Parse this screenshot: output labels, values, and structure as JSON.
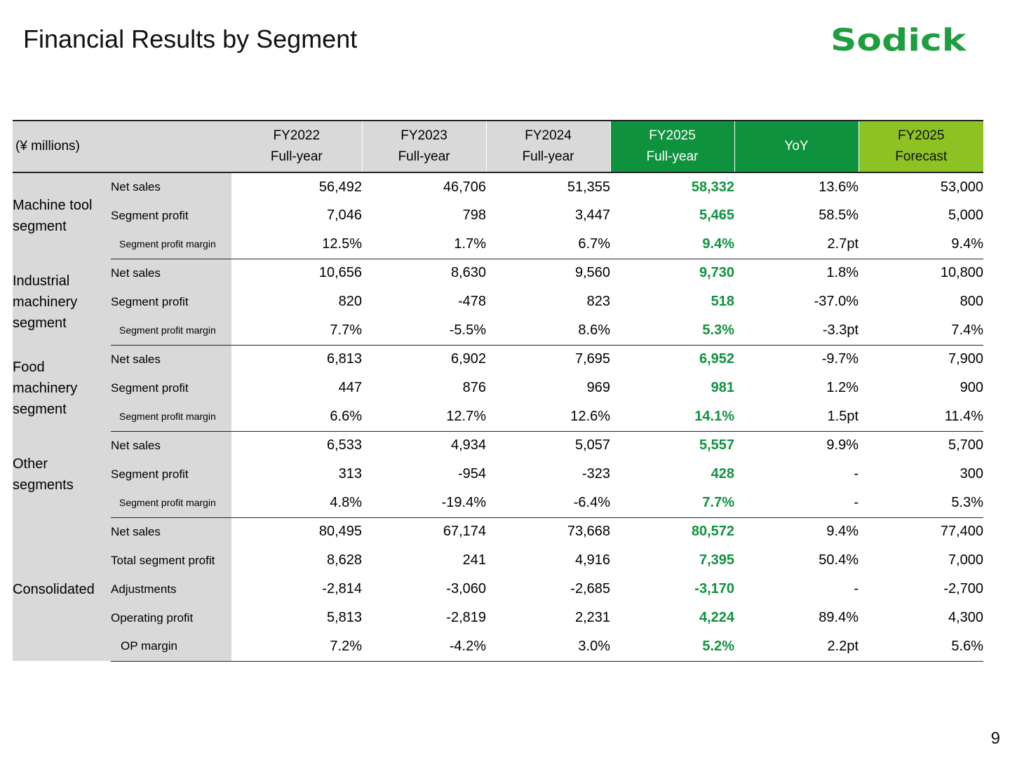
{
  "title": "Financial Results by Segment",
  "logo_text": "Sodick",
  "page_number": "9",
  "colors": {
    "accent_green": "#0f923e",
    "forecast_lime": "#8cc221",
    "label_gray": "#d9d9d9"
  },
  "table": {
    "unit_label": "(¥ millions)",
    "columns": [
      {
        "line1": "FY2022",
        "line2": "Full-year"
      },
      {
        "line1": "FY2023",
        "line2": "Full-year"
      },
      {
        "line1": "FY2024",
        "line2": "Full-year"
      },
      {
        "line1": "FY2025",
        "line2": "Full-year"
      },
      {
        "line1": "YoY",
        "line2": ""
      },
      {
        "line1": "FY2025",
        "line2": "Forecast"
      }
    ],
    "groups": [
      {
        "segment": "Machine tool segment",
        "rows": [
          {
            "metric": "Net sales",
            "values": [
              "56,492",
              "46,706",
              "51,355",
              "58,332",
              "13.6%",
              "53,000"
            ]
          },
          {
            "metric": "Segment profit",
            "values": [
              "7,046",
              "798",
              "3,447",
              "5,465",
              "58.5%",
              "5,000"
            ]
          },
          {
            "metric": "Segment profit margin",
            "values": [
              "12.5%",
              "1.7%",
              "6.7%",
              "9.4%",
              "2.7pt",
              "9.4%"
            ]
          }
        ]
      },
      {
        "segment": "Industrial machinery segment",
        "rows": [
          {
            "metric": "Net sales",
            "values": [
              "10,656",
              "8,630",
              "9,560",
              "9,730",
              "1.8%",
              "10,800"
            ]
          },
          {
            "metric": "Segment profit",
            "values": [
              "820",
              "-478",
              "823",
              "518",
              "-37.0%",
              "800"
            ]
          },
          {
            "metric": "Segment profit margin",
            "values": [
              "7.7%",
              "-5.5%",
              "8.6%",
              "5.3%",
              "-3.3pt",
              "7.4%"
            ]
          }
        ]
      },
      {
        "segment": "Food machinery segment",
        "rows": [
          {
            "metric": "Net sales",
            "values": [
              "6,813",
              "6,902",
              "7,695",
              "6,952",
              "-9.7%",
              "7,900"
            ]
          },
          {
            "metric": "Segment profit",
            "values": [
              "447",
              "876",
              "969",
              "981",
              "1.2%",
              "900"
            ]
          },
          {
            "metric": "Segment profit margin",
            "values": [
              "6.6%",
              "12.7%",
              "12.6%",
              "14.1%",
              "1.5pt",
              "11.4%"
            ]
          }
        ]
      },
      {
        "segment": "Other segments",
        "rows": [
          {
            "metric": "Net sales",
            "values": [
              "6,533",
              "4,934",
              "5,057",
              "5,557",
              "9.9%",
              "5,700"
            ]
          },
          {
            "metric": "Segment profit",
            "values": [
              "313",
              "-954",
              "-323",
              "428",
              "-",
              "300"
            ]
          },
          {
            "metric": "Segment profit margin",
            "values": [
              "4.8%",
              "-19.4%",
              "-6.4%",
              "7.7%",
              "-",
              "5.3%"
            ]
          }
        ]
      },
      {
        "segment": "Consolidated",
        "rows": [
          {
            "metric": "Net sales",
            "values": [
              "80,495",
              "67,174",
              "73,668",
              "80,572",
              "9.4%",
              "77,400"
            ]
          },
          {
            "metric": "Total segment profit",
            "values": [
              "8,628",
              "241",
              "4,916",
              "7,395",
              "50.4%",
              "7,000"
            ]
          },
          {
            "metric": "Adjustments",
            "values": [
              "-2,814",
              "-3,060",
              "-2,685",
              "-3,170",
              "-",
              "-2,700"
            ]
          },
          {
            "metric": "Operating profit",
            "values": [
              "5,813",
              "-2,819",
              "2,231",
              "4,224",
              "89.4%",
              "4,300"
            ]
          },
          {
            "metric": "OP margin",
            "values": [
              "7.2%",
              "-4.2%",
              "3.0%",
              "5.2%",
              "2.2pt",
              "5.6%"
            ]
          }
        ]
      }
    ]
  }
}
